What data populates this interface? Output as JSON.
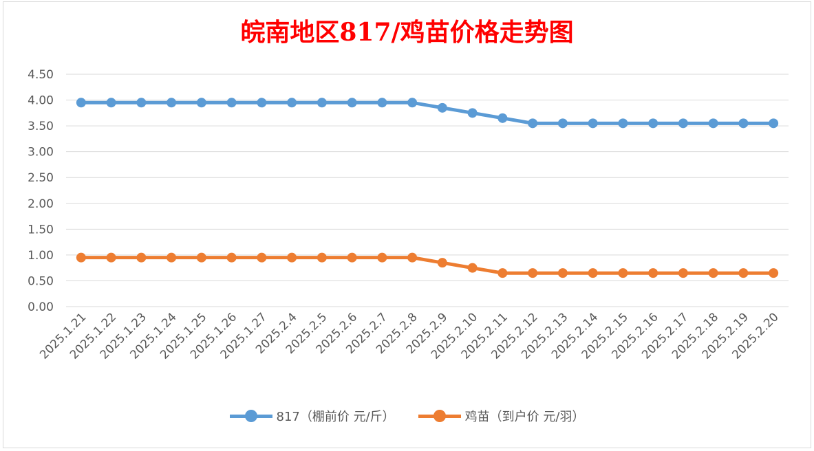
{
  "chart_data": {
    "type": "line",
    "title": "皖南地区817/鸡苗价格走势图",
    "categories": [
      "2025.1.21",
      "2025.1.22",
      "2025.1.23",
      "2025.1.24",
      "2025.1.25",
      "2025.1.26",
      "2025.1.27",
      "2025.2.4",
      "2025.2.5",
      "2025.2.6",
      "2025.2.7",
      "2025.2.8",
      "2025.2.9",
      "2025.2.10",
      "2025.2.11",
      "2025.2.12",
      "2025.2.13",
      "2025.2.14",
      "2025.2.15",
      "2025.2.16",
      "2025.2.17",
      "2025.2.18",
      "2025.2.19",
      "2025.2.20"
    ],
    "series": [
      {
        "name": "817（棚前价 元/斤）",
        "color": "#5b9bd5",
        "values": [
          3.95,
          3.95,
          3.95,
          3.95,
          3.95,
          3.95,
          3.95,
          3.95,
          3.95,
          3.95,
          3.95,
          3.95,
          3.85,
          3.75,
          3.65,
          3.55,
          3.55,
          3.55,
          3.55,
          3.55,
          3.55,
          3.55,
          3.55,
          3.55
        ]
      },
      {
        "name": "鸡苗（到户价 元/羽）",
        "color": "#ed7d31",
        "values": [
          0.95,
          0.95,
          0.95,
          0.95,
          0.95,
          0.95,
          0.95,
          0.95,
          0.95,
          0.95,
          0.95,
          0.95,
          0.85,
          0.75,
          0.65,
          0.65,
          0.65,
          0.65,
          0.65,
          0.65,
          0.65,
          0.65,
          0.65,
          0.65
        ]
      }
    ],
    "ylim": [
      0,
      4.5
    ],
    "yticks": [
      "0.00",
      "0.50",
      "1.00",
      "1.50",
      "2.00",
      "2.50",
      "3.00",
      "3.50",
      "4.00",
      "4.50"
    ],
    "grid": true,
    "legend_position": "bottom"
  }
}
